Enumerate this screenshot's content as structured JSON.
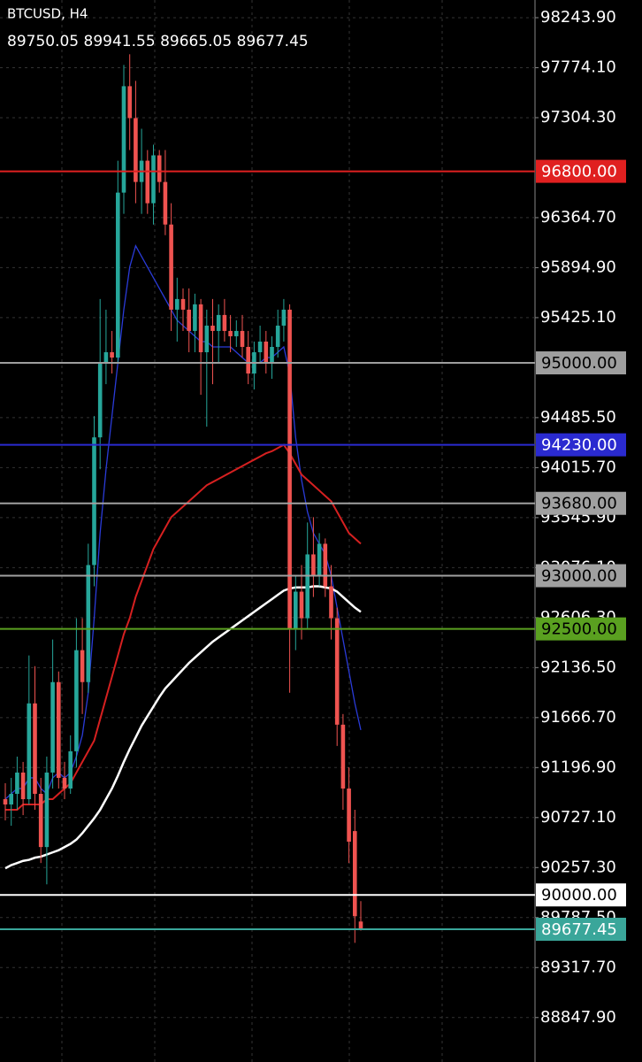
{
  "chart_data": {
    "type": "candlestick",
    "title": "BTCUSD, H4",
    "ylim": [
      88430,
      98410
    ],
    "yticks": [
      {
        "value": 98243.9,
        "label": "98243.90"
      },
      {
        "value": 97774.1,
        "label": "97774.10"
      },
      {
        "value": 97304.3,
        "label": "97304.30"
      },
      {
        "value": 96364.7,
        "label": "96364.70"
      },
      {
        "value": 95894.9,
        "label": "95894.90"
      },
      {
        "value": 95425.1,
        "label": "95425.10"
      },
      {
        "value": 94485.5,
        "label": "94485.50"
      },
      {
        "value": 94015.7,
        "label": "94015.70"
      },
      {
        "value": 93545.9,
        "label": "93545.90"
      },
      {
        "value": 93076.1,
        "label": "93076.10"
      },
      {
        "value": 92606.3,
        "label": "92606.30"
      },
      {
        "value": 92136.5,
        "label": "92136.50"
      },
      {
        "value": 91666.7,
        "label": "91666.70"
      },
      {
        "value": 91196.9,
        "label": "91196.90"
      },
      {
        "value": 90727.1,
        "label": "90727.10"
      },
      {
        "value": 90257.3,
        "label": "90257.30"
      },
      {
        "value": 89787.5,
        "label": "89787.50"
      },
      {
        "value": 89317.7,
        "label": "89317.70"
      },
      {
        "value": 88847.9,
        "label": "88847.90"
      }
    ],
    "grid": true,
    "up_color": "#26a69a",
    "down_color": "#ef5350",
    "candles": {
      "open": [
        90900,
        90850,
        90950,
        91150,
        90900,
        91800,
        90950,
        90450,
        91150,
        92000,
        91100,
        91000,
        91350,
        92300,
        92000,
        93100,
        94300,
        95000,
        95100,
        95050,
        96600,
        97600,
        97300,
        96700,
        96900,
        96500,
        96950,
        96700,
        96300,
        95500,
        95600,
        95500,
        95300,
        95550,
        95100,
        95350,
        95300,
        95450,
        95300,
        95250,
        95300,
        95150,
        94900,
        95100,
        95200,
        95000,
        95150,
        95350,
        95500,
        92500,
        92850,
        92600,
        93200,
        93000,
        93300,
        92900,
        92600,
        91600,
        91000,
        90600,
        89750.05
      ],
      "high": [
        91050,
        91100,
        91300,
        91250,
        92250,
        92150,
        91100,
        91300,
        92400,
        92100,
        91250,
        91500,
        92600,
        92600,
        93300,
        94500,
        95600,
        95500,
        95300,
        96900,
        97800,
        97900,
        97650,
        97200,
        97000,
        97050,
        97000,
        97000,
        96500,
        95800,
        95700,
        95700,
        95650,
        95600,
        95500,
        95600,
        95550,
        95600,
        95450,
        95400,
        95450,
        95300,
        95200,
        95350,
        95300,
        95250,
        95500,
        95600,
        95550,
        93000,
        93100,
        93500,
        93550,
        93400,
        93350,
        93100,
        92700,
        91700,
        91200,
        90800,
        89941.55
      ],
      "low": [
        90700,
        90650,
        90800,
        90750,
        90850,
        90800,
        90300,
        90100,
        91000,
        91000,
        90900,
        90950,
        91200,
        91700,
        91900,
        92900,
        94000,
        94800,
        94900,
        95000,
        96400,
        97000,
        96500,
        96400,
        96400,
        96300,
        96600,
        96200,
        95300,
        95200,
        95300,
        95100,
        95100,
        94700,
        94400,
        94800,
        95000,
        95200,
        95100,
        95150,
        95050,
        94800,
        94750,
        95000,
        94900,
        94850,
        95050,
        95200,
        91900,
        92300,
        92400,
        92500,
        92800,
        92900,
        92800,
        92400,
        91400,
        90800,
        90300,
        89550,
        89665.05
      ],
      "close": [
        90850,
        90950,
        91150,
        90900,
        91800,
        90950,
        90450,
        91150,
        92000,
        91100,
        91000,
        91350,
        92300,
        92000,
        93100,
        94300,
        95000,
        95100,
        95050,
        96600,
        97600,
        97300,
        96700,
        96900,
        96500,
        96950,
        96700,
        96300,
        95500,
        95600,
        95500,
        95300,
        95550,
        95100,
        95350,
        95300,
        95450,
        95300,
        95250,
        95300,
        95150,
        94900,
        95100,
        95200,
        95000,
        95150,
        95350,
        95500,
        92500,
        92850,
        92600,
        93200,
        93000,
        93300,
        92900,
        92600,
        91600,
        91000,
        90500,
        89800,
        89677.45
      ]
    },
    "series": [
      {
        "color": "#2a3bd8",
        "values": [
          90900,
          90950,
          91000,
          91000,
          91100,
          91100,
          91000,
          90950,
          91100,
          91150,
          91100,
          91150,
          91300,
          91500,
          91900,
          92600,
          93400,
          94000,
          94500,
          95000,
          95500,
          95900,
          96100,
          96000,
          95900,
          95800,
          95700,
          95600,
          95500,
          95400,
          95350,
          95300,
          95250,
          95200,
          95200,
          95150,
          95150,
          95150,
          95150,
          95100,
          95050,
          95000,
          95000,
          95000,
          95050,
          95050,
          95100,
          95150,
          94900,
          94300,
          93900,
          93600,
          93400,
          93300,
          93200,
          93000,
          92700,
          92400,
          92100,
          91800,
          91550
        ]
      },
      {
        "color": "#d62020",
        "values": [
          90800,
          90800,
          90800,
          90850,
          90850,
          90850,
          90850,
          90900,
          90900,
          90950,
          91000,
          91050,
          91150,
          91250,
          91350,
          91450,
          91650,
          91850,
          92050,
          92250,
          92450,
          92600,
          92800,
          92950,
          93100,
          93250,
          93350,
          93450,
          93550,
          93600,
          93650,
          93700,
          93750,
          93800,
          93850,
          93880,
          93910,
          93940,
          93970,
          94000,
          94030,
          94060,
          94090,
          94120,
          94150,
          94170,
          94200,
          94230,
          94150,
          94050,
          93950,
          93900,
          93850,
          93800,
          93750,
          93700,
          93600,
          93500,
          93400,
          93350,
          93300
        ]
      },
      {
        "color": "#ffffff",
        "values": [
          90250,
          90280,
          90300,
          90320,
          90330,
          90350,
          90360,
          90380,
          90400,
          90420,
          90450,
          90480,
          90520,
          90580,
          90650,
          90720,
          90800,
          90900,
          91000,
          91120,
          91250,
          91370,
          91480,
          91590,
          91680,
          91770,
          91860,
          91940,
          92000,
          92060,
          92120,
          92180,
          92230,
          92280,
          92330,
          92380,
          92420,
          92460,
          92500,
          92540,
          92580,
          92620,
          92660,
          92700,
          92740,
          92780,
          92820,
          92860,
          92880,
          92890,
          92890,
          92890,
          92900,
          92900,
          92890,
          92880,
          92850,
          92800,
          92750,
          92700,
          92660
        ]
      }
    ],
    "levels": [
      {
        "value": 96800,
        "label": "96800.00",
        "color": "#e02020",
        "text_color": "#ffffff"
      },
      {
        "value": 95000,
        "label": "95000.00",
        "color": "#9e9e9e",
        "text_color": "#000000"
      },
      {
        "value": 94230,
        "label": "94230.00",
        "color": "#2a2ad0",
        "text_color": "#ffffff"
      },
      {
        "value": 93680,
        "label": "93680.00",
        "color": "#a0a0a0",
        "text_color": "#000000"
      },
      {
        "value": 93000,
        "label": "93000.00",
        "color": "#a0a0a0",
        "text_color": "#000000"
      },
      {
        "value": 92500,
        "label": "92500.00",
        "color": "#5aa020",
        "text_color": "#000000"
      },
      {
        "value": 90000,
        "label": "90000.00",
        "color": "#ffffff",
        "text_color": "#000000"
      }
    ],
    "last_price_color": "#3aa69a"
  }
}
